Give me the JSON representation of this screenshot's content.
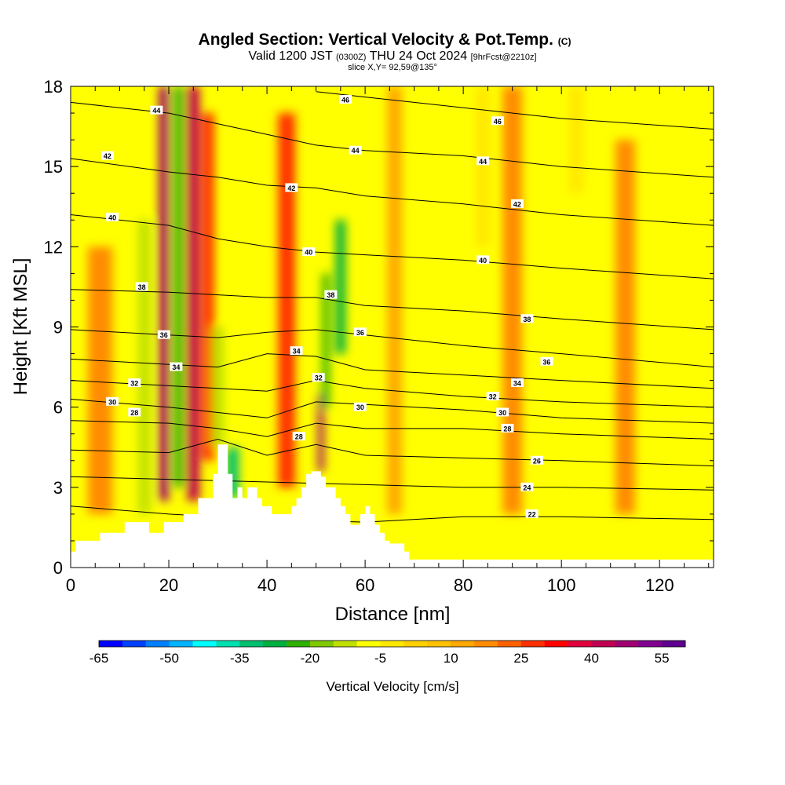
{
  "chart_data": {
    "type": "heatmap",
    "title": "Angled Section: Vertical Velocity & Pot.Temp.",
    "title_unit": "(C)",
    "subtitle": {
      "valid_prefix": "Valid 1200 JST",
      "utc": "(0300Z)",
      "date": "THU 24 Oct 2024",
      "run": "[9hrFcst@2210z]"
    },
    "slice_label": "slice X,Y= 92,59@135°",
    "xlabel": "Distance [nm]",
    "ylabel": "Height [Kft MSL]",
    "xlim": [
      0,
      131
    ],
    "ylim": [
      0,
      18
    ],
    "x_ticks": [
      0,
      20,
      40,
      60,
      80,
      100,
      120
    ],
    "y_ticks": [
      0,
      3,
      6,
      9,
      12,
      15,
      18
    ],
    "colorbar": {
      "title": "Vertical Velocity [cm/s]",
      "min": -65,
      "max": 60,
      "step": 5,
      "tick_labels": [
        -65,
        -50,
        -35,
        -20,
        -5,
        10,
        25,
        40,
        55
      ],
      "colors": [
        "#0000ff",
        "#0040ff",
        "#0080ff",
        "#00b4ff",
        "#00ffff",
        "#00e0b0",
        "#00c070",
        "#00b040",
        "#30b000",
        "#80c800",
        "#c0e000",
        "#ffff00",
        "#ffe800",
        "#ffd000",
        "#ffc000",
        "#ffa800",
        "#ff8c00",
        "#ff6000",
        "#ff3000",
        "#ff0000",
        "#e0003c",
        "#c00050",
        "#a00070",
        "#800090",
        "#600090"
      ]
    },
    "terrain": [
      [
        0,
        0.6
      ],
      [
        1,
        1
      ],
      [
        5,
        1
      ],
      [
        6,
        1.3
      ],
      [
        10,
        1.3
      ],
      [
        11,
        1.7
      ],
      [
        15,
        1.7
      ],
      [
        16,
        1.3
      ],
      [
        18,
        1.3
      ],
      [
        19,
        1.7
      ],
      [
        22,
        1.7
      ],
      [
        23,
        2
      ],
      [
        25,
        2
      ],
      [
        26,
        2.6
      ],
      [
        28,
        2.6
      ],
      [
        29,
        3.5
      ],
      [
        30,
        4.6
      ],
      [
        31,
        4.6
      ],
      [
        32,
        3.5
      ],
      [
        33,
        2.6
      ],
      [
        34,
        3
      ],
      [
        35,
        2.6
      ],
      [
        36,
        3
      ],
      [
        38,
        2.6
      ],
      [
        39,
        2.3
      ],
      [
        41,
        2
      ],
      [
        44,
        2
      ],
      [
        45,
        2.3
      ],
      [
        46,
        2.6
      ],
      [
        47,
        3
      ],
      [
        48,
        3.5
      ],
      [
        49,
        3.6
      ],
      [
        50,
        3.6
      ],
      [
        51,
        3.4
      ],
      [
        52,
        3
      ],
      [
        54,
        2.6
      ],
      [
        55,
        2.3
      ],
      [
        56,
        2
      ],
      [
        57,
        1.6
      ],
      [
        59,
        2
      ],
      [
        60,
        2.3
      ],
      [
        61,
        2
      ],
      [
        62,
        1.6
      ],
      [
        63,
        1.3
      ],
      [
        64,
        1
      ],
      [
        65,
        0.9
      ],
      [
        68,
        0.6
      ],
      [
        69,
        0.3
      ],
      [
        131,
        0.3
      ]
    ],
    "vv_features": [
      {
        "x": 19,
        "z0": 2.5,
        "z1": 18,
        "w": 2.0,
        "value": 45
      },
      {
        "x": 22,
        "z0": 3,
        "z1": 18,
        "w": 2.0,
        "value": -25
      },
      {
        "x": 25,
        "z0": 2.5,
        "z1": 18,
        "w": 2.5,
        "value": 40
      },
      {
        "x": 28,
        "z0": 4,
        "z1": 17,
        "w": 2.5,
        "value": 25
      },
      {
        "x": 33,
        "z0": 2.6,
        "z1": 4.5,
        "w": 2.5,
        "value": -35
      },
      {
        "x": 30,
        "z0": 4.5,
        "z1": 9,
        "w": 2.5,
        "value": -12
      },
      {
        "x": 34,
        "z0": 8,
        "z1": 17,
        "w": 3,
        "value": -10
      },
      {
        "x": 44,
        "z0": 3,
        "z1": 17,
        "w": 3.5,
        "value": 25
      },
      {
        "x": 51,
        "z0": 3.6,
        "z1": 6.5,
        "w": 1.2,
        "value": 45
      },
      {
        "x": 52,
        "z0": 6,
        "z1": 11,
        "w": 1.5,
        "value": -25
      },
      {
        "x": 55,
        "z0": 8,
        "z1": 13,
        "w": 2.0,
        "value": -30
      },
      {
        "x": 15,
        "z0": 2,
        "z1": 13,
        "w": 2.5,
        "value": -12
      },
      {
        "x": 6,
        "z0": 2,
        "z1": 12,
        "w": 5,
        "value": 15
      },
      {
        "x": 66,
        "z0": 2,
        "z1": 18,
        "w": 3,
        "value": 12
      },
      {
        "x": 90,
        "z0": 2,
        "z1": 18,
        "w": 4,
        "value": 15
      },
      {
        "x": 113,
        "z0": 2,
        "z1": 16,
        "w": 4,
        "value": 15
      },
      {
        "x": 84,
        "z0": 12,
        "z1": 18,
        "w": 3,
        "value": -5
      },
      {
        "x": 103,
        "z0": 14,
        "z1": 18,
        "w": 3,
        "value": -5
      }
    ],
    "isentropes": [
      {
        "value": 22,
        "z": [
          [
            0,
            2.3
          ],
          [
            20,
            2.0
          ],
          [
            40,
            1.8
          ],
          [
            60,
            1.7
          ],
          [
            80,
            1.9
          ],
          [
            100,
            1.9
          ],
          [
            131,
            1.8
          ]
        ]
      },
      {
        "value": 24,
        "z": [
          [
            0,
            3.4
          ],
          [
            20,
            3.3
          ],
          [
            40,
            3.2
          ],
          [
            60,
            3.1
          ],
          [
            80,
            3.0
          ],
          [
            100,
            3.0
          ],
          [
            131,
            2.9
          ]
        ]
      },
      {
        "value": 26,
        "z": [
          [
            0,
            4.4
          ],
          [
            20,
            4.3
          ],
          [
            30,
            4.8
          ],
          [
            40,
            4.2
          ],
          [
            50,
            4.6
          ],
          [
            60,
            4.2
          ],
          [
            80,
            4.1
          ],
          [
            100,
            4.0
          ],
          [
            131,
            3.8
          ]
        ]
      },
      {
        "value": 28,
        "z": [
          [
            0,
            5.5
          ],
          [
            20,
            5.4
          ],
          [
            30,
            5.2
          ],
          [
            40,
            4.9
          ],
          [
            50,
            5.4
          ],
          [
            60,
            5.2
          ],
          [
            80,
            5.2
          ],
          [
            100,
            5.0
          ],
          [
            131,
            4.8
          ]
        ]
      },
      {
        "value": 30,
        "z": [
          [
            0,
            6.3
          ],
          [
            20,
            6.0
          ],
          [
            30,
            5.8
          ],
          [
            40,
            5.6
          ],
          [
            50,
            6.2
          ],
          [
            60,
            6.1
          ],
          [
            80,
            5.9
          ],
          [
            100,
            5.6
          ],
          [
            131,
            5.4
          ]
        ]
      },
      {
        "value": 32,
        "z": [
          [
            0,
            7.0
          ],
          [
            20,
            6.8
          ],
          [
            30,
            6.7
          ],
          [
            40,
            6.6
          ],
          [
            50,
            7.0
          ],
          [
            60,
            6.7
          ],
          [
            80,
            6.4
          ],
          [
            100,
            6.2
          ],
          [
            131,
            6.0
          ]
        ]
      },
      {
        "value": 34,
        "z": [
          [
            0,
            7.8
          ],
          [
            20,
            7.6
          ],
          [
            30,
            7.5
          ],
          [
            40,
            8.0
          ],
          [
            50,
            7.9
          ],
          [
            60,
            7.4
          ],
          [
            80,
            7.2
          ],
          [
            100,
            7.0
          ],
          [
            131,
            6.7
          ]
        ]
      },
      {
        "value": 36,
        "z": [
          [
            0,
            8.9
          ],
          [
            20,
            8.7
          ],
          [
            30,
            8.6
          ],
          [
            40,
            8.8
          ],
          [
            50,
            8.9
          ],
          [
            60,
            8.7
          ],
          [
            80,
            8.3
          ],
          [
            100,
            8.0
          ],
          [
            131,
            7.5
          ]
        ]
      },
      {
        "value": 38,
        "z": [
          [
            0,
            10.4
          ],
          [
            20,
            10.3
          ],
          [
            30,
            10.2
          ],
          [
            40,
            10.1
          ],
          [
            50,
            10.1
          ],
          [
            60,
            9.8
          ],
          [
            80,
            9.6
          ],
          [
            100,
            9.3
          ],
          [
            131,
            8.9
          ]
        ]
      },
      {
        "value": 40,
        "z": [
          [
            0,
            13.2
          ],
          [
            20,
            12.8
          ],
          [
            30,
            12.3
          ],
          [
            40,
            12.0
          ],
          [
            50,
            11.8
          ],
          [
            60,
            11.7
          ],
          [
            80,
            11.5
          ],
          [
            100,
            11.2
          ],
          [
            131,
            10.8
          ]
        ]
      },
      {
        "value": 42,
        "z": [
          [
            0,
            15.3
          ],
          [
            20,
            14.8
          ],
          [
            30,
            14.6
          ],
          [
            40,
            14.3
          ],
          [
            50,
            14.2
          ],
          [
            60,
            13.9
          ],
          [
            80,
            13.6
          ],
          [
            100,
            13.2
          ],
          [
            131,
            12.8
          ]
        ]
      },
      {
        "value": 44,
        "z": [
          [
            0,
            17.4
          ],
          [
            20,
            17.0
          ],
          [
            30,
            16.6
          ],
          [
            40,
            16.2
          ],
          [
            50,
            15.8
          ],
          [
            60,
            15.6
          ],
          [
            80,
            15.4
          ],
          [
            100,
            15.0
          ],
          [
            131,
            14.6
          ]
        ]
      },
      {
        "value": 46,
        "z": [
          [
            50,
            17.8
          ],
          [
            60,
            17.6
          ],
          [
            80,
            17.2
          ],
          [
            100,
            16.8
          ],
          [
            131,
            16.4
          ]
        ]
      }
    ],
    "contour_labels": [
      {
        "text": "44",
        "x": 17.5,
        "z": 17.1
      },
      {
        "text": "46",
        "x": 56,
        "z": 17.5
      },
      {
        "text": "46",
        "x": 87,
        "z": 16.7
      },
      {
        "text": "42",
        "x": 7.5,
        "z": 15.4
      },
      {
        "text": "44",
        "x": 58,
        "z": 15.6
      },
      {
        "text": "44",
        "x": 84,
        "z": 15.2
      },
      {
        "text": "42",
        "x": 45,
        "z": 14.2
      },
      {
        "text": "42",
        "x": 91,
        "z": 13.6
      },
      {
        "text": "40",
        "x": 8.5,
        "z": 13.1
      },
      {
        "text": "40",
        "x": 48.5,
        "z": 11.8
      },
      {
        "text": "40",
        "x": 84,
        "z": 11.5
      },
      {
        "text": "38",
        "x": 14.5,
        "z": 10.5
      },
      {
        "text": "38",
        "x": 53,
        "z": 10.2
      },
      {
        "text": "38",
        "x": 93,
        "z": 9.3
      },
      {
        "text": "36",
        "x": 19,
        "z": 8.7
      },
      {
        "text": "36",
        "x": 59,
        "z": 8.8
      },
      {
        "text": "36",
        "x": 97,
        "z": 7.7
      },
      {
        "text": "34",
        "x": 21.5,
        "z": 7.5
      },
      {
        "text": "34",
        "x": 46,
        "z": 8.1
      },
      {
        "text": "34",
        "x": 91,
        "z": 6.9
      },
      {
        "text": "32",
        "x": 13,
        "z": 6.9
      },
      {
        "text": "32",
        "x": 50.5,
        "z": 7.1
      },
      {
        "text": "32",
        "x": 86,
        "z": 6.4
      },
      {
        "text": "30",
        "x": 8.5,
        "z": 6.2
      },
      {
        "text": "30",
        "x": 59,
        "z": 6.0
      },
      {
        "text": "30",
        "x": 88,
        "z": 5.8
      },
      {
        "text": "28",
        "x": 13,
        "z": 5.8
      },
      {
        "text": "28",
        "x": 46.5,
        "z": 4.9
      },
      {
        "text": "28",
        "x": 89,
        "z": 5.2
      },
      {
        "text": "26",
        "x": 95,
        "z": 4.0
      },
      {
        "text": "24",
        "x": 93,
        "z": 3.0
      },
      {
        "text": "22",
        "x": 94,
        "z": 2.0
      }
    ]
  }
}
